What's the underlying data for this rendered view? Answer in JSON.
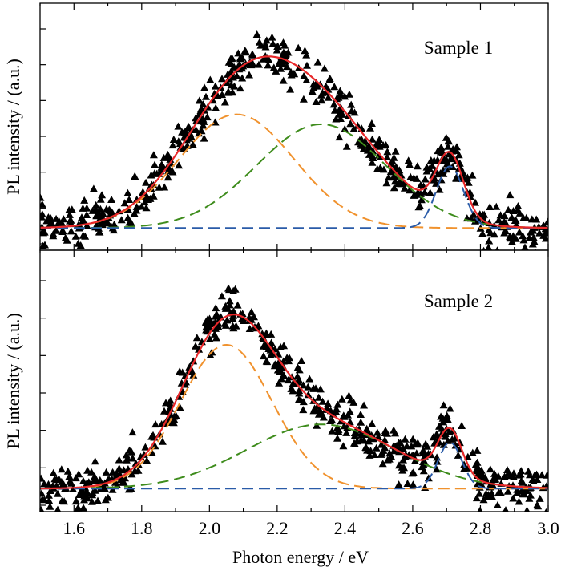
{
  "chart_data": {
    "type": "scatter",
    "xlabel": "Photon energy / eV",
    "xlim": [
      1.5,
      3.0
    ],
    "xticks": [
      "1.6",
      "1.8",
      "2.0",
      "2.2",
      "2.4",
      "2.6",
      "2.8",
      "3.0"
    ],
    "shared_x": true,
    "yscale": "arbitrary",
    "ytick_labels_shown": false,
    "marker": "triangle",
    "colors": {
      "markers": "#000000",
      "fit_total": "#e8282a",
      "component_low": "#f0922e",
      "component_mid": "#3e8c1c",
      "component_high": "#2a5ba8"
    },
    "panels": [
      {
        "label": "Sample 1",
        "ylabel": "PL intensity / (a.u.)",
        "ylim": [
          0,
          1.0
        ],
        "baseline": 0.09,
        "series": [
          {
            "kind": "gaussian",
            "component": "low",
            "center": 2.08,
            "sigma": 0.17,
            "amplitude": 0.46
          },
          {
            "kind": "gaussian",
            "component": "mid",
            "center": 2.33,
            "sigma": 0.19,
            "amplitude": 0.42
          },
          {
            "kind": "gaussian",
            "component": "high",
            "center": 2.71,
            "sigma": 0.04,
            "amplitude": 0.25
          },
          {
            "kind": "sum",
            "component": "total"
          },
          {
            "kind": "scatter",
            "noise": 0.045
          }
        ]
      },
      {
        "label": "Sample 2",
        "ylabel": "PL intensity / (a.u.)",
        "ylim": [
          0,
          1.0
        ],
        "baseline": 0.09,
        "series": [
          {
            "kind": "gaussian",
            "component": "low",
            "center": 2.05,
            "sigma": 0.135,
            "amplitude": 0.56
          },
          {
            "kind": "gaussian",
            "component": "mid",
            "center": 2.33,
            "sigma": 0.22,
            "amplitude": 0.25
          },
          {
            "kind": "gaussian",
            "component": "high",
            "center": 2.71,
            "sigma": 0.035,
            "amplitude": 0.18
          },
          {
            "kind": "sum",
            "component": "total"
          },
          {
            "kind": "scatter",
            "noise": 0.045
          }
        ]
      }
    ]
  }
}
